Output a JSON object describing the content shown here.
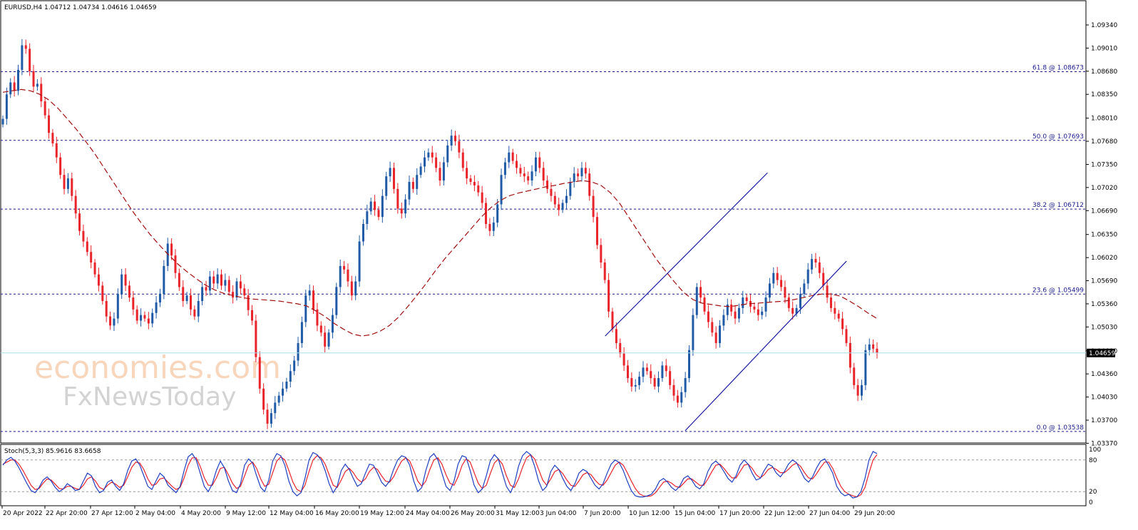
{
  "main_chart": {
    "title": "EURUSD,H4  1.04712 1.04734 1.04616 1.04659",
    "current_price": "1.04659",
    "y_axis": {
      "min": 1.0337,
      "max": 1.0967,
      "ticks": [
        "1.09340",
        "1.09010",
        "1.08680",
        "1.08350",
        "1.08010",
        "1.07680",
        "1.07350",
        "1.07020",
        "1.06690",
        "1.06350",
        "1.06020",
        "1.05690",
        "1.05360",
        "1.05030",
        "1.04690",
        "1.04360",
        "1.04030",
        "1.03700",
        "1.03370"
      ]
    },
    "fib_levels": [
      {
        "label": "61.8 @ 1.08673",
        "value": 1.08673
      },
      {
        "label": "50.0 @ 1.07693",
        "value": 1.07693
      },
      {
        "label": "38.2 @ 1.06712",
        "value": 1.06712
      },
      {
        "label": "23.6 @ 1.05499",
        "value": 1.05499
      },
      {
        "label": "0.0 @ 1.03538",
        "value": 1.03538
      }
    ],
    "close_series": [
      1.08,
      1.0835,
      1.0852,
      1.084,
      1.087,
      1.0905,
      1.09,
      1.0868,
      1.0846,
      1.085,
      1.0825,
      1.0805,
      1.078,
      1.0765,
      1.0745,
      1.072,
      1.07,
      1.0715,
      1.069,
      1.0665,
      1.064,
      1.0625,
      1.061,
      1.0595,
      1.0578,
      1.0562,
      1.054,
      1.0518,
      1.0505,
      1.0515,
      1.055,
      1.0578,
      1.0562,
      1.0545,
      1.0528,
      1.0512,
      1.052,
      1.0515,
      1.0508,
      1.0523,
      1.0538,
      1.055,
      1.059,
      1.0622,
      1.0605,
      1.058,
      1.056,
      1.054,
      1.0548,
      1.0528,
      1.0518,
      1.054,
      1.056,
      1.0555,
      1.0575,
      1.0565,
      1.0578,
      1.0562,
      1.057,
      1.0553,
      1.0545,
      1.0568,
      1.0558,
      1.0548,
      1.0527,
      1.0512,
      1.046,
      1.0415,
      1.0385,
      1.0365,
      1.038,
      1.0395,
      1.0405,
      1.0415,
      1.0425,
      1.044,
      1.0455,
      1.048,
      1.051,
      1.0548,
      1.0555,
      1.0528,
      1.0505,
      1.0495,
      1.0475,
      1.0495,
      1.052,
      1.056,
      1.059,
      1.0585,
      1.0568,
      1.0548,
      1.0568,
      1.0625,
      1.065,
      1.0668,
      1.0682,
      1.067,
      1.066,
      1.069,
      1.0718,
      1.073,
      1.07,
      1.0672,
      1.0665,
      1.0685,
      1.071,
      1.07,
      1.072,
      1.0732,
      1.0745,
      1.0752,
      1.0745,
      1.073,
      1.0712,
      1.0738,
      1.0762,
      1.0776,
      1.0768,
      1.0752,
      1.073,
      1.0715,
      1.071,
      1.0705,
      1.0695,
      1.068,
      1.065,
      1.064,
      1.0652,
      1.0678,
      1.072,
      1.0738,
      1.0752,
      1.074,
      1.073,
      1.0722,
      1.0718,
      1.0712,
      1.0725,
      1.0745,
      1.073,
      1.0712,
      1.07,
      1.069,
      1.0678,
      1.067,
      1.068,
      1.069,
      1.071,
      1.0722,
      1.0718,
      1.073,
      1.0722,
      1.069,
      1.066,
      1.062,
      1.0595,
      1.057,
      1.0525,
      1.05,
      1.048,
      1.0465,
      1.0448,
      1.043,
      1.0418,
      1.042,
      1.0432,
      1.0445,
      1.044,
      1.043,
      1.0418,
      1.043,
      1.0448,
      1.044,
      1.042,
      1.0405,
      1.0395,
      1.041,
      1.043,
      1.047,
      1.052,
      1.056,
      1.0545,
      1.0525,
      1.051,
      1.0495,
      1.048,
      1.0505,
      1.052,
      1.0535,
      1.0525,
      1.0515,
      1.053,
      1.0545,
      1.054,
      1.0532,
      1.0528,
      1.052,
      1.0525,
      1.0545,
      1.0565,
      1.058,
      1.057,
      1.056,
      1.0545,
      1.053,
      1.0522,
      1.053,
      1.055,
      1.0565,
      1.0585,
      1.06,
      1.0595,
      1.058,
      1.0562,
      1.0545,
      1.053,
      1.0522,
      1.0515,
      1.05,
      1.048,
      1.0445,
      1.042,
      1.0405,
      1.042,
      1.047,
      1.0478,
      1.0472,
      1.0466
    ],
    "ma_series": [
      1.0838,
      1.084,
      1.0842,
      1.084,
      1.0835,
      1.0827,
      1.0815,
      1.08,
      1.0785,
      1.0768,
      1.075,
      1.073,
      1.071,
      1.069,
      1.067,
      1.0652,
      1.0635,
      1.062,
      1.0606,
      1.0593,
      1.0582,
      1.0572,
      1.0563,
      1.0556,
      1.0551,
      1.0548,
      1.0545,
      1.0543,
      1.0542,
      1.0541,
      1.054,
      1.0538,
      1.0536,
      1.0533,
      1.0526,
      1.0518,
      1.0508,
      1.05,
      1.0493,
      1.049,
      1.0492,
      1.0497,
      1.0505,
      1.0517,
      1.0532,
      1.0548,
      1.0565,
      1.0583,
      1.06,
      1.0615,
      1.063,
      1.0645,
      1.066,
      1.0673,
      1.0683,
      1.069,
      1.0694,
      1.0697,
      1.07,
      1.0703,
      1.0705,
      1.0708,
      1.071,
      1.0712,
      1.071,
      1.0705,
      1.0695,
      1.068,
      1.066,
      1.064,
      1.062,
      1.06,
      1.0583,
      1.0567,
      1.0552,
      1.0542,
      1.0537,
      1.0535,
      1.0533,
      1.0532,
      1.0534,
      1.0536,
      1.0537,
      1.0538,
      1.0539,
      1.054,
      1.0542,
      1.0545,
      1.0548,
      1.055,
      1.055,
      1.0547,
      1.054,
      1.0532,
      1.0523,
      1.0515
    ],
    "channel_lines": [
      {
        "from": [
          0.544,
          1.049
        ],
        "to": [
          0.69,
          1.0723
        ]
      },
      {
        "from": [
          0.616,
          1.0355
        ],
        "to": [
          0.761,
          1.0597
        ]
      }
    ],
    "watermark": {
      "line1": "economies.com",
      "line2": "FxNewsToday"
    }
  },
  "stoch_panel": {
    "title": "Stoch(5,3,3) 85.9616 83.6658",
    "levels": [
      80,
      20
    ],
    "ticks": [
      "100",
      "80",
      "20",
      "0"
    ],
    "main_series": [
      70,
      80,
      85,
      78,
      65,
      50,
      35,
      22,
      18,
      28,
      42,
      48,
      40,
      28,
      20,
      25,
      35,
      30,
      22,
      24,
      40,
      55,
      50,
      30,
      18,
      22,
      38,
      42,
      30,
      22,
      35,
      60,
      78,
      82,
      70,
      50,
      30,
      24,
      40,
      55,
      48,
      32,
      25,
      18,
      30,
      60,
      86,
      92,
      80,
      55,
      30,
      20,
      35,
      60,
      78,
      65,
      40,
      22,
      18,
      35,
      70,
      82,
      74,
      50,
      28,
      20,
      42,
      78,
      92,
      88,
      70,
      40,
      20,
      12,
      18,
      45,
      80,
      94,
      90,
      80,
      60,
      35,
      18,
      30,
      60,
      72,
      62,
      45,
      30,
      35,
      55,
      72,
      70,
      55,
      38,
      30,
      40,
      62,
      80,
      88,
      85,
      70,
      40,
      20,
      28,
      60,
      85,
      92,
      80,
      55,
      30,
      22,
      40,
      72,
      88,
      85,
      60,
      32,
      18,
      25,
      50,
      78,
      90,
      82,
      55,
      30,
      18,
      35,
      68,
      88,
      96,
      90,
      68,
      40,
      22,
      30,
      58,
      70,
      62,
      45,
      30,
      22,
      35,
      55,
      62,
      58,
      45,
      32,
      25,
      35,
      55,
      72,
      80,
      75,
      60,
      40,
      22,
      12,
      10,
      10,
      12,
      15,
      25,
      40,
      45,
      38,
      28,
      22,
      30,
      45,
      50,
      42,
      30,
      25,
      35,
      58,
      72,
      78,
      70,
      58,
      45,
      38,
      50,
      70,
      80,
      72,
      55,
      42,
      45,
      60,
      72,
      68,
      55,
      48,
      58,
      72,
      80,
      75,
      60,
      45,
      38,
      48,
      65,
      78,
      82,
      70,
      55,
      30,
      18,
      12,
      15,
      8,
      10,
      20,
      45,
      80,
      96,
      92
    ],
    "signal_series": [
      72,
      76,
      80,
      80,
      72,
      60,
      46,
      32,
      24,
      26,
      36,
      44,
      42,
      34,
      26,
      25,
      30,
      30,
      26,
      24,
      32,
      44,
      48,
      40,
      28,
      24,
      32,
      38,
      34,
      28,
      32,
      48,
      66,
      76,
      74,
      62,
      44,
      32,
      34,
      44,
      46,
      38,
      30,
      24,
      28,
      46,
      70,
      84,
      84,
      68,
      46,
      32,
      32,
      46,
      64,
      66,
      52,
      36,
      26,
      30,
      50,
      70,
      76,
      64,
      44,
      30,
      34,
      56,
      78,
      86,
      80,
      60,
      38,
      24,
      20,
      32,
      58,
      80,
      88,
      84,
      72,
      52,
      32,
      28,
      42,
      58,
      64,
      56,
      44,
      38,
      44,
      58,
      66,
      62,
      50,
      40,
      38,
      48,
      64,
      78,
      84,
      78,
      60,
      40,
      30,
      40,
      62,
      80,
      84,
      72,
      52,
      36,
      32,
      48,
      70,
      82,
      76,
      56,
      36,
      26,
      32,
      54,
      74,
      82,
      72,
      50,
      32,
      28,
      44,
      66,
      84,
      90,
      82,
      62,
      42,
      32,
      44,
      58,
      62,
      54,
      42,
      32,
      30,
      40,
      52,
      56,
      52,
      42,
      34,
      32,
      42,
      56,
      70,
      76,
      70,
      56,
      40,
      26,
      16,
      12,
      11,
      12,
      18,
      28,
      38,
      40,
      36,
      30,
      28,
      36,
      44,
      44,
      38,
      32,
      32,
      44,
      58,
      70,
      72,
      64,
      54,
      46,
      46,
      58,
      70,
      72,
      64,
      52,
      46,
      52,
      62,
      66,
      62,
      56,
      56,
      62,
      70,
      74,
      68,
      56,
      46,
      44,
      54,
      66,
      76,
      76,
      64,
      46,
      30,
      20,
      15,
      12,
      10,
      14,
      28,
      55,
      80,
      90
    ]
  },
  "x_axis": {
    "labels": [
      "20 Apr 2022",
      "22 Apr 20:00",
      "27 Apr 12:00",
      "2 May 04:00",
      "4 May 20:00",
      "9 May 12:00",
      "12 May 04:00",
      "16 May 20:00",
      "19 May 12:00",
      "24 May 04:00",
      "26 May 20:00",
      "31 May 12:00",
      "3 Jun 04:00",
      "7 Jun 20:00",
      "10 Jun 12:00",
      "15 Jun 04:00",
      "17 Jun 20:00",
      "22 Jun 12:00",
      "27 Jun 04:00",
      "29 Jun 20:00"
    ]
  },
  "colors": {
    "bull": "#1f5aa6",
    "bear": "#e8232a",
    "ma": "#a01010",
    "fib": "#1a1a8c",
    "channel": "#1a1aa0",
    "stoch_main": "#1f3fc0",
    "stoch_signal": "#e8232a",
    "price_line": "#a8dde8"
  }
}
